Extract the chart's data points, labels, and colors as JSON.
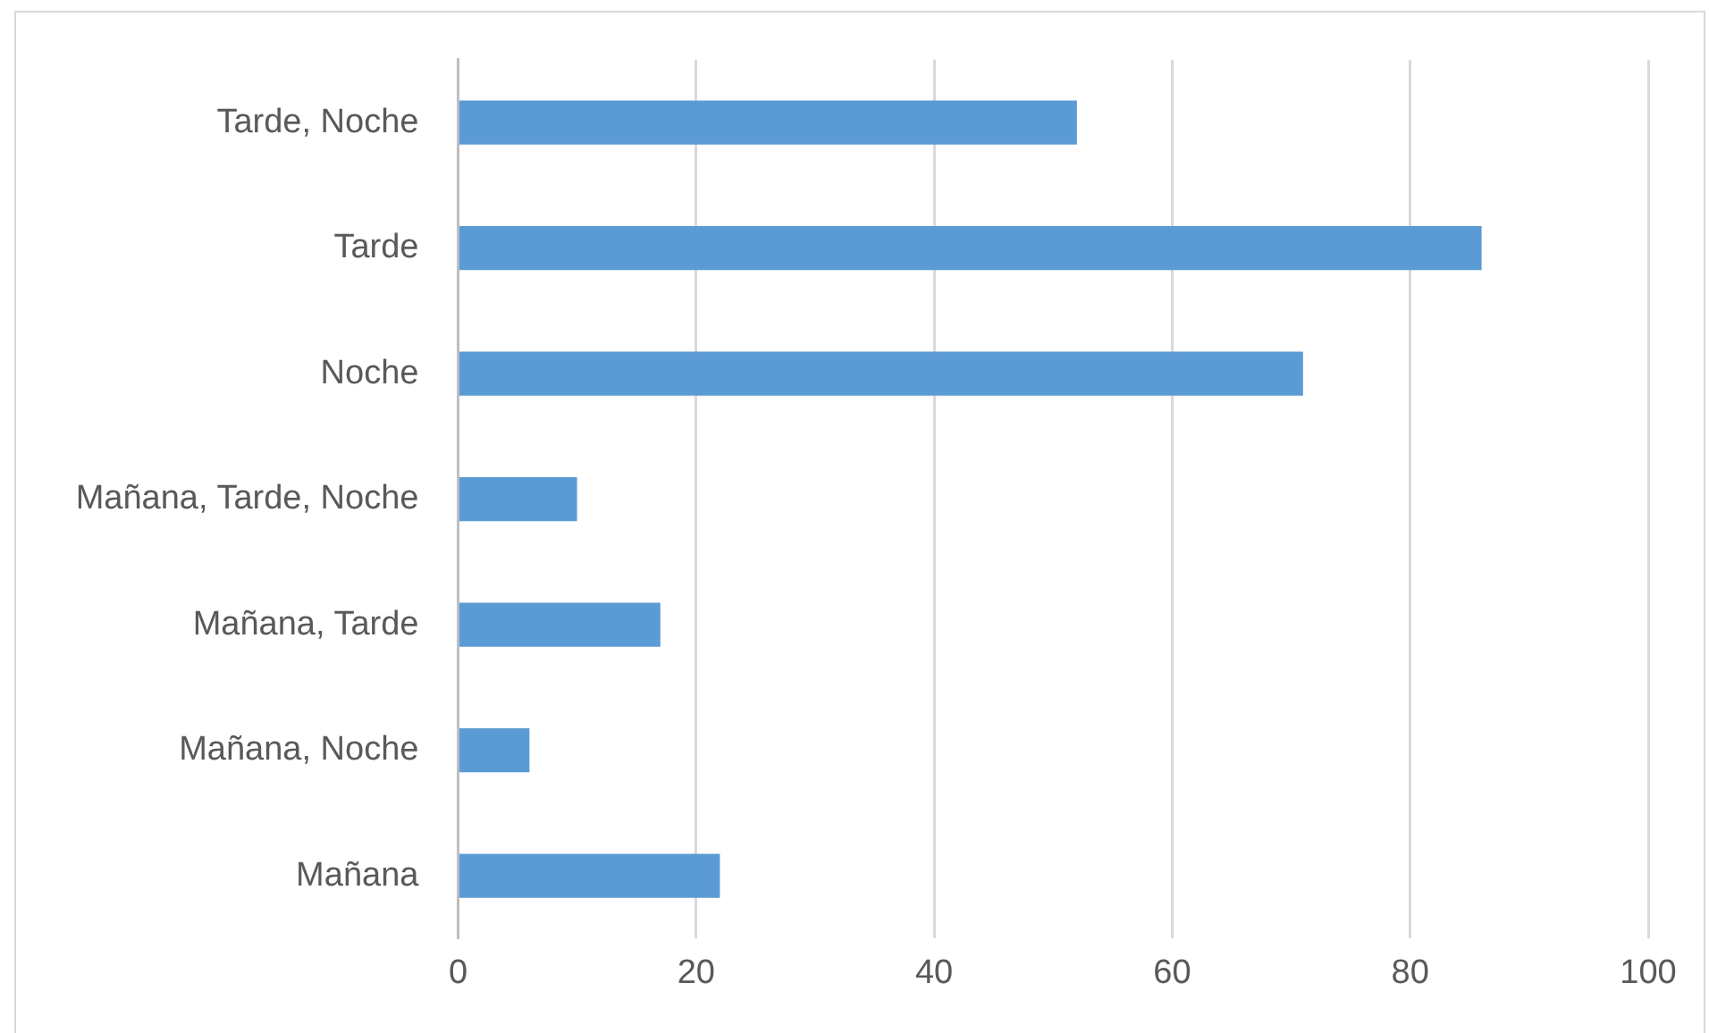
{
  "chart_data": {
    "type": "bar",
    "orientation": "horizontal",
    "categories": [
      "Tarde, Noche",
      "Tarde",
      "Noche",
      "Mañana, Tarde, Noche",
      "Mañana, Tarde",
      "Mañana, Noche",
      "Mañana"
    ],
    "values": [
      52,
      86,
      71,
      10,
      17,
      6,
      22
    ],
    "color": "#5b9bd5",
    "xlim": [
      0,
      100
    ],
    "xticks": [
      0,
      20,
      40,
      60,
      80,
      100
    ],
    "grid": "x",
    "legend": false
  }
}
